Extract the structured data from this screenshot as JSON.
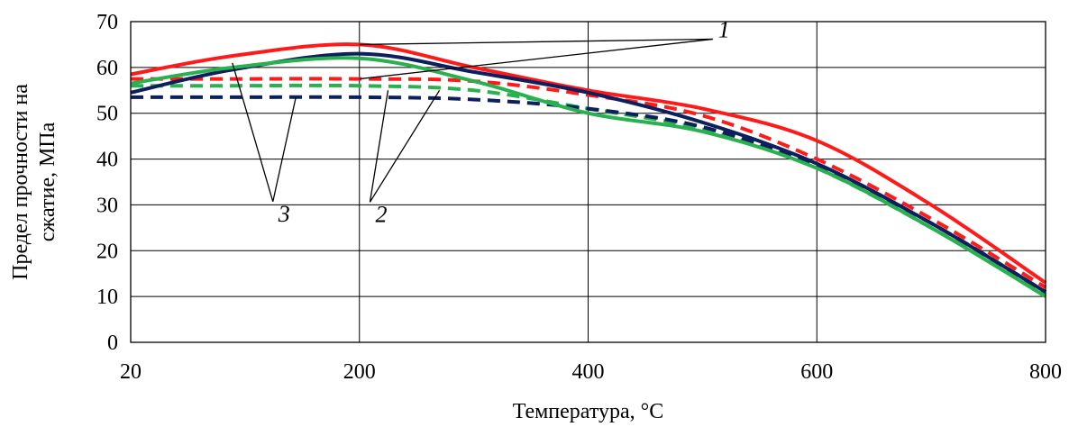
{
  "chart_data": {
    "type": "line",
    "xlabel": "Температура, °C",
    "ylabel_lines": [
      "Предел прочности на",
      "сжатие, МПа"
    ],
    "x_ticks": [
      20,
      200,
      400,
      600,
      800
    ],
    "y_ticks": [
      0,
      10,
      20,
      30,
      40,
      50,
      60,
      70
    ],
    "xlim": [
      20,
      800
    ],
    "ylim": [
      0,
      70
    ],
    "grid": true,
    "x_scale": "non-uniform: 20–200 spans the same width as 200–400",
    "colors": {
      "red": "#ff1a1a",
      "green": "#2ab14f",
      "navy": "#0d1f5c"
    },
    "series": [
      {
        "group": "1",
        "color": "red",
        "dash": "solid",
        "x": [
          20,
          100,
          200,
          300,
          400,
          500,
          600,
          700,
          800
        ],
        "values": [
          58.5,
          62.5,
          65,
          60,
          55,
          51,
          44,
          30,
          13
        ]
      },
      {
        "group": "1",
        "color": "navy",
        "dash": "solid",
        "x": [
          20,
          100,
          200,
          300,
          400,
          500,
          600,
          700,
          800
        ],
        "values": [
          54.5,
          59.5,
          63,
          59,
          54.5,
          48,
          39,
          26,
          11
        ]
      },
      {
        "group": "1",
        "color": "green",
        "dash": "solid",
        "x": [
          20,
          100,
          200,
          300,
          400,
          500,
          600,
          700,
          800
        ],
        "values": [
          56.5,
          60,
          62,
          57,
          50,
          46,
          38,
          25,
          10
        ]
      },
      {
        "group": "2",
        "color": "red",
        "dash": "dashed",
        "x": [
          20,
          100,
          200,
          300,
          400,
          500,
          600,
          700,
          800
        ],
        "values": [
          57.5,
          57.5,
          57.5,
          57,
          54,
          49.5,
          40,
          27,
          12
        ]
      },
      {
        "group": "2",
        "color": "green",
        "dash": "dashed",
        "x": [
          20,
          100,
          200,
          300,
          400,
          500,
          600,
          700,
          800
        ],
        "values": [
          56,
          56,
          56,
          55,
          51,
          46.5,
          38,
          25,
          10.5
        ]
      },
      {
        "group": "3",
        "color": "navy",
        "dash": "dashed",
        "x": [
          20,
          100,
          200,
          300,
          400,
          500,
          600,
          700,
          800
        ],
        "values": [
          53.5,
          53.5,
          53.5,
          53,
          51,
          47,
          38.5,
          26,
          11
        ]
      }
    ],
    "annotations": [
      {
        "label": "1",
        "leader_points": [
          [
            200,
            65
          ],
          [
            200,
            57.5
          ]
        ]
      },
      {
        "label": "2",
        "leader_points": [
          [
            225,
            55
          ],
          [
            270,
            55
          ]
        ]
      },
      {
        "label": "3",
        "leader_points": [
          [
            100,
            61
          ],
          [
            150,
            53.5
          ]
        ]
      }
    ]
  }
}
